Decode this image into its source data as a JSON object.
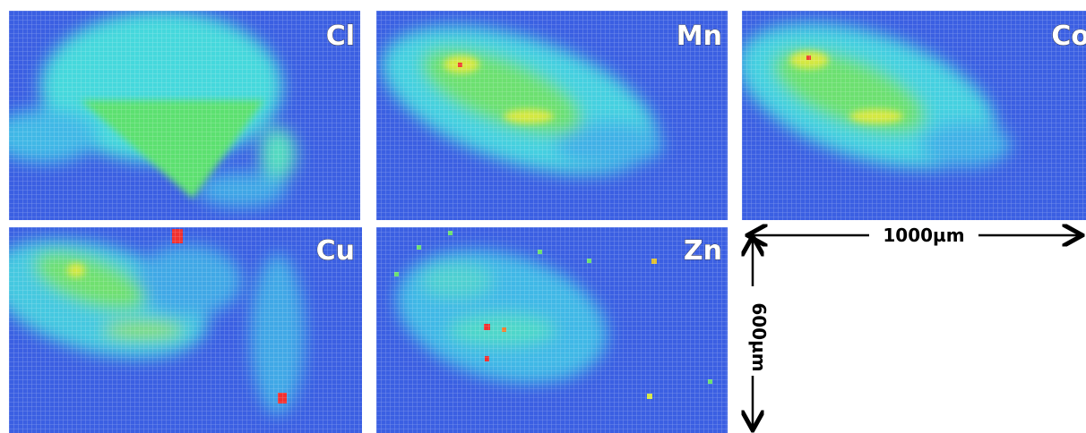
{
  "panels": [
    {
      "label": "Cl"
    },
    {
      "label": "Mn"
    },
    {
      "label": "Co"
    },
    {
      "label": "Cu"
    },
    {
      "label": "Zn"
    }
  ],
  "scale": {
    "horizontal": "1000µm",
    "vertical": "600µm"
  }
}
